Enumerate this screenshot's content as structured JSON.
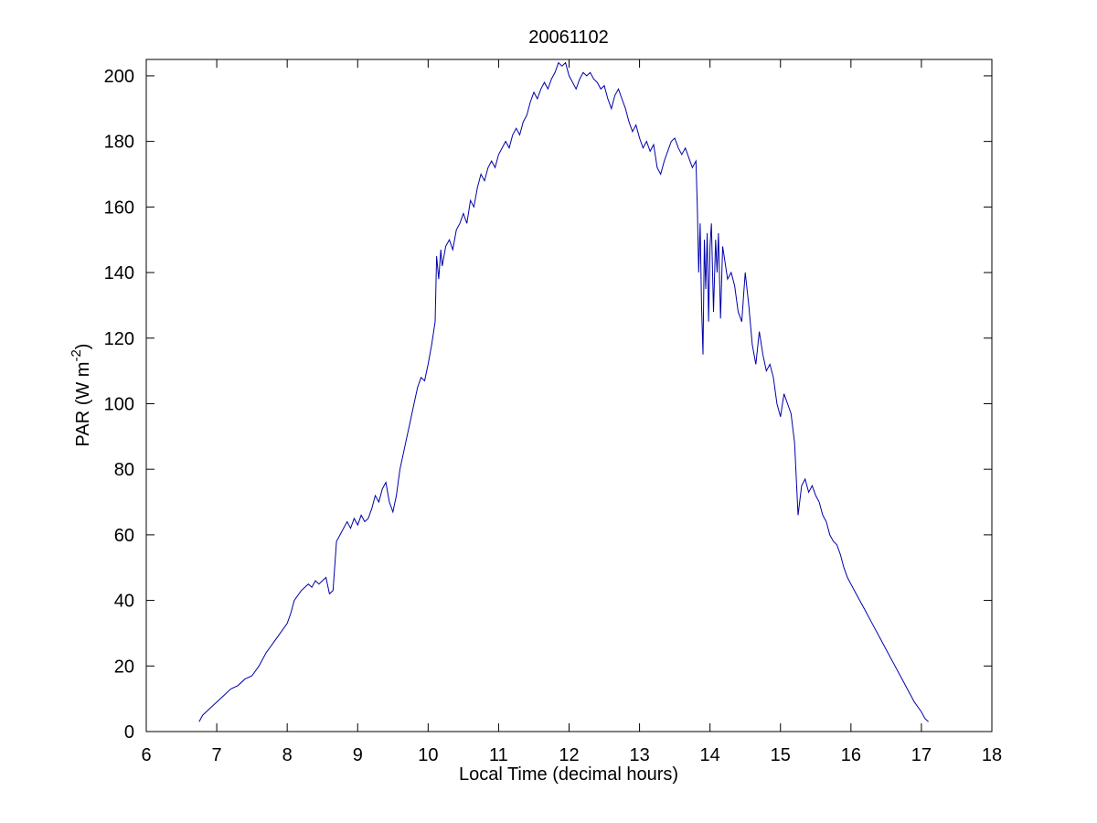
{
  "figure": {
    "background": "#ffffff"
  },
  "chart_data": {
    "type": "line",
    "title": "20061102",
    "xlabel": "Local Time (decimal hours)",
    "ylabel": "PAR (W m⁻²)",
    "ylabel_parts": {
      "pre": "PAR (W m",
      "sup": "-2",
      "post": ")"
    },
    "xlim": [
      6,
      18
    ],
    "ylim": [
      0,
      205
    ],
    "xticks": [
      6,
      7,
      8,
      9,
      10,
      11,
      12,
      13,
      14,
      15,
      16,
      17,
      18
    ],
    "yticks": [
      0,
      20,
      40,
      60,
      80,
      100,
      120,
      140,
      160,
      180,
      200
    ],
    "grid": false,
    "legend_position": "none",
    "line_color": "#0000AA",
    "points": [
      [
        6.75,
        3
      ],
      [
        6.8,
        5
      ],
      [
        6.9,
        7
      ],
      [
        7.0,
        9
      ],
      [
        7.1,
        11
      ],
      [
        7.2,
        13
      ],
      [
        7.3,
        14
      ],
      [
        7.4,
        16
      ],
      [
        7.5,
        17
      ],
      [
        7.6,
        20
      ],
      [
        7.7,
        24
      ],
      [
        7.8,
        27
      ],
      [
        7.9,
        30
      ],
      [
        8.0,
        33
      ],
      [
        8.05,
        36
      ],
      [
        8.1,
        40
      ],
      [
        8.2,
        43
      ],
      [
        8.3,
        45
      ],
      [
        8.35,
        44
      ],
      [
        8.4,
        46
      ],
      [
        8.45,
        45
      ],
      [
        8.5,
        46
      ],
      [
        8.55,
        47
      ],
      [
        8.6,
        42
      ],
      [
        8.65,
        43
      ],
      [
        8.7,
        58
      ],
      [
        8.75,
        60
      ],
      [
        8.8,
        62
      ],
      [
        8.85,
        64
      ],
      [
        8.9,
        62
      ],
      [
        8.95,
        65
      ],
      [
        9.0,
        63
      ],
      [
        9.05,
        66
      ],
      [
        9.1,
        64
      ],
      [
        9.15,
        65
      ],
      [
        9.2,
        68
      ],
      [
        9.25,
        72
      ],
      [
        9.3,
        70
      ],
      [
        9.35,
        74
      ],
      [
        9.4,
        76
      ],
      [
        9.45,
        70
      ],
      [
        9.5,
        67
      ],
      [
        9.55,
        72
      ],
      [
        9.6,
        80
      ],
      [
        9.65,
        85
      ],
      [
        9.7,
        90
      ],
      [
        9.75,
        95
      ],
      [
        9.8,
        100
      ],
      [
        9.85,
        105
      ],
      [
        9.9,
        108
      ],
      [
        9.95,
        107
      ],
      [
        10.0,
        112
      ],
      [
        10.05,
        118
      ],
      [
        10.1,
        125
      ],
      [
        10.12,
        145
      ],
      [
        10.15,
        138
      ],
      [
        10.18,
        147
      ],
      [
        10.2,
        142
      ],
      [
        10.25,
        148
      ],
      [
        10.3,
        150
      ],
      [
        10.35,
        147
      ],
      [
        10.4,
        153
      ],
      [
        10.45,
        155
      ],
      [
        10.5,
        158
      ],
      [
        10.55,
        155
      ],
      [
        10.6,
        162
      ],
      [
        10.65,
        160
      ],
      [
        10.7,
        166
      ],
      [
        10.75,
        170
      ],
      [
        10.8,
        168
      ],
      [
        10.85,
        172
      ],
      [
        10.9,
        174
      ],
      [
        10.95,
        172
      ],
      [
        11.0,
        176
      ],
      [
        11.05,
        178
      ],
      [
        11.1,
        180
      ],
      [
        11.15,
        178
      ],
      [
        11.2,
        182
      ],
      [
        11.25,
        184
      ],
      [
        11.3,
        182
      ],
      [
        11.35,
        186
      ],
      [
        11.4,
        188
      ],
      [
        11.45,
        192
      ],
      [
        11.5,
        195
      ],
      [
        11.55,
        193
      ],
      [
        11.6,
        196
      ],
      [
        11.65,
        198
      ],
      [
        11.7,
        196
      ],
      [
        11.75,
        199
      ],
      [
        11.8,
        201
      ],
      [
        11.85,
        204
      ],
      [
        11.9,
        203
      ],
      [
        11.95,
        204
      ],
      [
        12.0,
        200
      ],
      [
        12.05,
        198
      ],
      [
        12.1,
        196
      ],
      [
        12.15,
        199
      ],
      [
        12.2,
        201
      ],
      [
        12.25,
        200
      ],
      [
        12.3,
        201
      ],
      [
        12.35,
        199
      ],
      [
        12.4,
        198
      ],
      [
        12.45,
        196
      ],
      [
        12.5,
        197
      ],
      [
        12.55,
        193
      ],
      [
        12.6,
        190
      ],
      [
        12.65,
        194
      ],
      [
        12.7,
        196
      ],
      [
        12.75,
        193
      ],
      [
        12.8,
        190
      ],
      [
        12.85,
        186
      ],
      [
        12.9,
        183
      ],
      [
        12.95,
        185
      ],
      [
        13.0,
        181
      ],
      [
        13.05,
        178
      ],
      [
        13.1,
        180
      ],
      [
        13.15,
        177
      ],
      [
        13.2,
        179
      ],
      [
        13.25,
        172
      ],
      [
        13.3,
        170
      ],
      [
        13.35,
        174
      ],
      [
        13.4,
        177
      ],
      [
        13.45,
        180
      ],
      [
        13.5,
        181
      ],
      [
        13.55,
        178
      ],
      [
        13.6,
        176
      ],
      [
        13.65,
        178
      ],
      [
        13.7,
        175
      ],
      [
        13.75,
        172
      ],
      [
        13.8,
        174
      ],
      [
        13.82,
        160
      ],
      [
        13.84,
        140
      ],
      [
        13.86,
        155
      ],
      [
        13.88,
        130
      ],
      [
        13.9,
        115
      ],
      [
        13.92,
        150
      ],
      [
        13.94,
        135
      ],
      [
        13.96,
        152
      ],
      [
        13.98,
        125
      ],
      [
        14.0,
        148
      ],
      [
        14.02,
        155
      ],
      [
        14.05,
        128
      ],
      [
        14.08,
        150
      ],
      [
        14.1,
        140
      ],
      [
        14.12,
        152
      ],
      [
        14.15,
        126
      ],
      [
        14.18,
        148
      ],
      [
        14.2,
        145
      ],
      [
        14.25,
        138
      ],
      [
        14.3,
        140
      ],
      [
        14.35,
        136
      ],
      [
        14.4,
        128
      ],
      [
        14.45,
        125
      ],
      [
        14.5,
        140
      ],
      [
        14.55,
        130
      ],
      [
        14.6,
        118
      ],
      [
        14.65,
        112
      ],
      [
        14.7,
        122
      ],
      [
        14.75,
        115
      ],
      [
        14.8,
        110
      ],
      [
        14.85,
        112
      ],
      [
        14.9,
        108
      ],
      [
        14.95,
        100
      ],
      [
        15.0,
        96
      ],
      [
        15.05,
        103
      ],
      [
        15.1,
        100
      ],
      [
        15.15,
        97
      ],
      [
        15.2,
        88
      ],
      [
        15.25,
        66
      ],
      [
        15.3,
        75
      ],
      [
        15.35,
        77
      ],
      [
        15.4,
        73
      ],
      [
        15.45,
        75
      ],
      [
        15.5,
        72
      ],
      [
        15.55,
        70
      ],
      [
        15.6,
        66
      ],
      [
        15.65,
        64
      ],
      [
        15.7,
        60
      ],
      [
        15.75,
        58
      ],
      [
        15.8,
        57
      ],
      [
        15.85,
        54
      ],
      [
        15.9,
        50
      ],
      [
        15.95,
        47
      ],
      [
        16.0,
        45
      ],
      [
        16.1,
        41
      ],
      [
        16.2,
        37
      ],
      [
        16.3,
        33
      ],
      [
        16.4,
        29
      ],
      [
        16.5,
        25
      ],
      [
        16.6,
        21
      ],
      [
        16.7,
        17
      ],
      [
        16.8,
        13
      ],
      [
        16.9,
        9
      ],
      [
        17.0,
        6
      ],
      [
        17.05,
        4
      ],
      [
        17.1,
        3
      ]
    ]
  }
}
